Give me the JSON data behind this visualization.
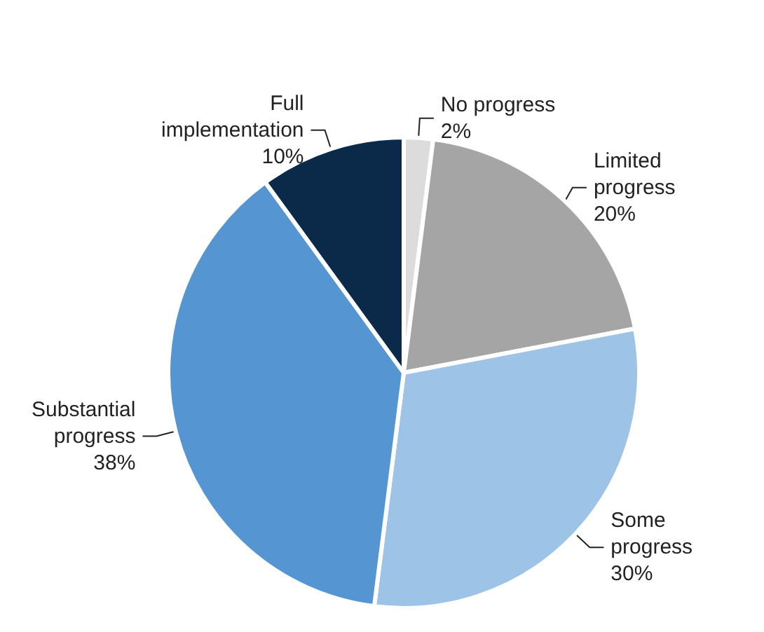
{
  "chart_data": {
    "type": "pie",
    "categories": [
      "No progress",
      "Limited progress",
      "Some progress",
      "Substantial progress",
      "Full implementation"
    ],
    "values": [
      2,
      20,
      30,
      38,
      10
    ],
    "colors": [
      "#dcdcdc",
      "#a5a5a5",
      "#9dc3e6",
      "#5596d2",
      "#0b2a4a"
    ],
    "value_labels": [
      "2%",
      "20%",
      "30%",
      "38%",
      "10%"
    ],
    "legend": false
  }
}
